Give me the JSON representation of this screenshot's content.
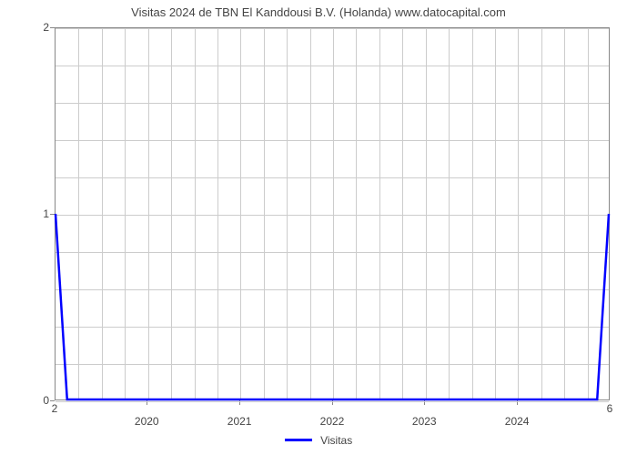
{
  "chart": {
    "type": "line",
    "title": "Visitas 2024 de TBN El Kanddousi B.V. (Holanda) www.datocapital.com",
    "title_fontsize": 13,
    "title_color": "#444444",
    "background_color": "#ffffff",
    "plot_border_color": "#888888",
    "grid_color": "#cccccc",
    "font_family": "Arial",
    "y_axis": {
      "lim": [
        0,
        2
      ],
      "major_ticks": [
        0,
        1,
        2
      ],
      "minor_ticks": [
        0.2,
        0.4,
        0.6,
        0.8,
        1.2,
        1.4,
        1.6,
        1.8
      ],
      "label_fontsize": 12,
      "label_color": "#444444"
    },
    "x_axis": {
      "major_labels": [
        "2020",
        "2021",
        "2022",
        "2023",
        "2024"
      ],
      "major_positions": [
        0.166,
        0.333,
        0.5,
        0.666,
        0.833
      ],
      "minor_grid_n": 24,
      "end_left_label": "2",
      "end_right_label": "6",
      "label_fontsize": 12,
      "label_color": "#444444"
    },
    "series": {
      "name": "Visitas",
      "color": "#0000ff",
      "line_width": 2.5,
      "points_xy": [
        [
          0.0,
          1.0
        ],
        [
          0.021,
          0.0
        ],
        [
          0.979,
          0.0
        ],
        [
          1.0,
          1.0
        ]
      ]
    },
    "legend": {
      "label": "Visitas",
      "color": "#0000ff",
      "fontsize": 12,
      "position": "bottom-center"
    }
  }
}
